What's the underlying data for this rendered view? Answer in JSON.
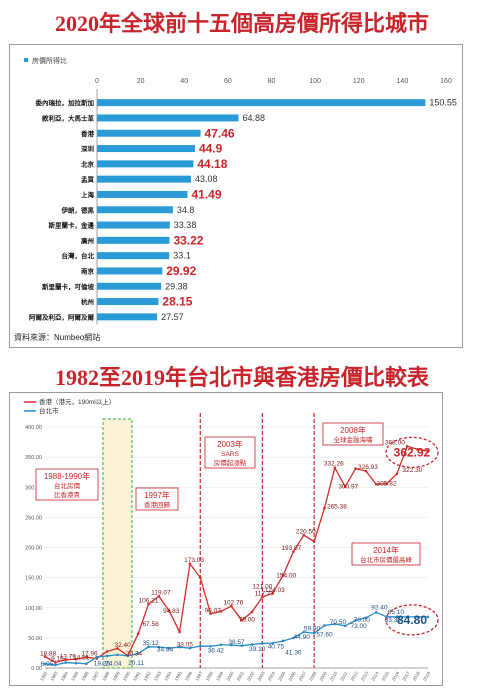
{
  "titles": {
    "top": "2020年全球前十五個高房價所得比城市",
    "bottom": "1982至2019年台北市與香港房價比較表"
  },
  "source_note": "資料來源：Numbeo網站",
  "colors": {
    "title_red": "#c8242b",
    "bar_blue": "#2a9bd7",
    "hk_line": "#d42a2a",
    "tp_line": "#2a8ac7",
    "highlight_red": "#c8242b"
  },
  "chart_data": [
    {
      "type": "bar",
      "orientation": "horizontal",
      "title": "2020年全球前十五個高房價所得比城市",
      "legend": [
        "房價所得比"
      ],
      "xlim": [
        0,
        160
      ],
      "xticks": [
        0,
        20,
        40,
        60,
        80,
        100,
        120,
        140,
        160
      ],
      "categories": [
        "委內瑞拉，加拉斯加",
        "敘利亞，大馬士革",
        "香港",
        "深圳",
        "北京",
        "孟買",
        "上海",
        "伊朗，德黑",
        "斯里蘭卡，金邊",
        "廣州",
        "台灣，台北",
        "南京",
        "斯里蘭卡，可倫坡",
        "杭州",
        "阿爾及利亞，阿爾及爾"
      ],
      "values": [
        150.55,
        64.88,
        47.46,
        44.9,
        44.18,
        43.08,
        41.49,
        34.8,
        33.38,
        33.22,
        33.1,
        29.92,
        29.38,
        28.15,
        27.57
      ],
      "value_labels": [
        "150.55",
        "64.88",
        "47.46",
        "44.9",
        "44.18",
        "43.08",
        "41.49",
        "34.8",
        "33.38",
        "33.22",
        "33.1",
        "29.92",
        "29.38",
        "28.15",
        "27.57"
      ],
      "highlight": [
        false,
        false,
        true,
        true,
        true,
        false,
        true,
        false,
        false,
        true,
        false,
        true,
        false,
        true,
        false
      ]
    },
    {
      "type": "line",
      "title": "1982至2019年台北市與香港房價比較表",
      "ylim": [
        0,
        400
      ],
      "yticks": [
        0,
        50,
        100,
        150,
        200,
        250,
        300,
        350,
        400
      ],
      "ytick_labels": [
        "0.00",
        "50.00",
        "100.00",
        "150.00",
        "200.00",
        "250.00",
        "300.00",
        "350.00",
        "400.00"
      ],
      "x": [
        1982,
        1983,
        1984,
        1985,
        1986,
        1987,
        1988,
        1989,
        1990,
        1991,
        1992,
        1993,
        1994,
        1995,
        1996,
        1997,
        1998,
        1999,
        2000,
        2001,
        2002,
        2003,
        2004,
        2005,
        2006,
        2007,
        2008,
        2009,
        2010,
        2011,
        2012,
        2013,
        2014,
        2015,
        2016,
        2017,
        2018,
        2019
      ],
      "series": [
        {
          "name": "香港（港元，190ml以上）",
          "values": [
            18.88,
            9.15,
            13.79,
            14.51,
            17.96,
            15.83,
            27.52,
            32.4,
            20.34,
            56.8,
            106.21,
            119.07,
            94.83,
            60.0,
            173.03,
            150.0,
            90.07,
            94.0,
            102.76,
            79.0,
            93.06,
            117.77,
            124.03,
            154.0,
            193.07,
            220.5,
            210.0,
            265.38,
            332.26,
            300.97,
            331.0,
            326.93,
            305.0,
            305.82,
            322.3,
            368.0,
            362.92,
            360.0
          ]
        },
        {
          "name": "台北市",
          "values": [
            6.95,
            5.0,
            9.0,
            8.0,
            7.1,
            18.25,
            20.0,
            22.0,
            20.11,
            24.0,
            35.12,
            34.84,
            33.05,
            34.58,
            33.0,
            36.42,
            36.0,
            38.57,
            38.0,
            37.0,
            39.1,
            40.75,
            41.3,
            44.9,
            50.0,
            59.9,
            57.6,
            70.5,
            73.0,
            70.0,
            79.0,
            83.3,
            92.4,
            85.0,
            85.1,
            84.8,
            84.8,
            84.8
          ]
        }
      ],
      "point_labels": {
        "hk": [
          "18.88",
          "9.15",
          "13.79",
          "14.51",
          "17.96",
          "32.40",
          "20.34",
          "106.21",
          "119.07",
          "94.83",
          "173.03",
          "90.07",
          "102.76",
          "79.00",
          "117.77",
          "124.03",
          "154.00",
          "193.07",
          "220.50",
          "265.38",
          "332.26",
          "300.97",
          "326.93",
          "305.82",
          "322.30",
          "368.00",
          "362.92",
          "67.58",
          "33.05",
          "121.00"
        ],
        "tp": [
          "6.95",
          "18.25",
          "20.11",
          "35.12",
          "34.84",
          "38.57",
          "36.42",
          "39.10",
          "40.75",
          "41.30",
          "44.90",
          "59.90",
          "57.60",
          "70.50",
          "73.00",
          "70.00",
          "83.30",
          "92.40",
          "85.10",
          "84.80",
          "24.04"
        ]
      },
      "annotations": [
        {
          "text": "1988-1990年\n台北房價\n比香港貴",
          "year": 1989
        },
        {
          "text": "1997年\n香港回歸",
          "year": 1997
        },
        {
          "text": "2003年\nSARS\n房價起漲點",
          "year": 2003
        },
        {
          "text": "2008年\n全球金融海嘯",
          "year": 2008
        },
        {
          "text": "2014年\n台北市房價最高峰",
          "year": 2014
        }
      ],
      "highlight_values": [
        "362.92",
        "84.80"
      ]
    }
  ]
}
